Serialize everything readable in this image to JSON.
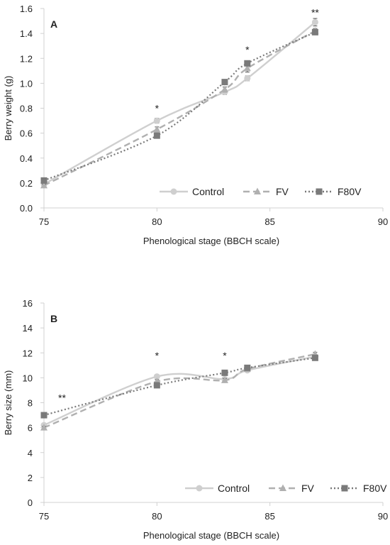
{
  "chart_data": [
    {
      "panel": "A",
      "type": "line",
      "xlabel": "Phenological stage (BBCH scale)",
      "ylabel": "Berry weight (g)",
      "xlim": [
        75,
        90
      ],
      "ylim": [
        0,
        1.6
      ],
      "xticks": [
        "75",
        "80",
        "85",
        "90"
      ],
      "yticks": [
        "0.0",
        "0.2",
        "0.4",
        "0.6",
        "0.8",
        "1.0",
        "1.2",
        "1.4",
        "1.6"
      ],
      "legend_position": "bottom-right",
      "grid": false,
      "series": [
        {
          "name": "Control",
          "marker": "circle",
          "color": "#cfcfcf",
          "dash": "solid",
          "x": [
            75,
            80,
            83,
            84,
            87
          ],
          "y": [
            0.19,
            0.7,
            0.93,
            1.04,
            1.49
          ],
          "err": [
            0.01,
            0.02,
            0.02,
            0.02,
            0.03
          ]
        },
        {
          "name": "FV",
          "marker": "triangle",
          "color": "#b0b0b0",
          "dash": "dashed",
          "x": [
            75,
            80,
            83,
            84,
            87
          ],
          "y": [
            0.18,
            0.63,
            0.95,
            1.12,
            1.42
          ],
          "err": [
            0.01,
            0.02,
            0.02,
            0.03,
            0.02
          ]
        },
        {
          "name": "F80V",
          "marker": "square",
          "color": "#7a7a7a",
          "dash": "dotted",
          "x": [
            75,
            80,
            83,
            84,
            87
          ],
          "y": [
            0.22,
            0.58,
            1.01,
            1.16,
            1.41
          ],
          "err": [
            0.01,
            0.02,
            0.02,
            0.02,
            0.02
          ]
        }
      ],
      "annotations": [
        {
          "x": 80,
          "y": 0.8,
          "text": "*"
        },
        {
          "x": 84,
          "y": 1.27,
          "text": "*"
        },
        {
          "x": 87,
          "y": 1.57,
          "text": "**"
        }
      ]
    },
    {
      "panel": "B",
      "type": "line",
      "xlabel": "Phenological stage (BBCH scale)",
      "ylabel": "Berry size (mm)",
      "xlim": [
        75,
        90
      ],
      "ylim": [
        0,
        16
      ],
      "xticks": [
        "75",
        "80",
        "85",
        "90"
      ],
      "yticks": [
        "0",
        "2",
        "4",
        "6",
        "8",
        "10",
        "12",
        "14",
        "16"
      ],
      "legend_position": "bottom-right",
      "grid": false,
      "series": [
        {
          "name": "Control",
          "marker": "circle",
          "color": "#cfcfcf",
          "dash": "solid",
          "x": [
            75,
            80,
            83,
            84,
            87
          ],
          "y": [
            6.2,
            10.1,
            9.9,
            10.6,
            11.7
          ],
          "err": [
            0.1,
            0.15,
            0.15,
            0.15,
            0.15
          ]
        },
        {
          "name": "FV",
          "marker": "triangle",
          "color": "#b0b0b0",
          "dash": "dashed",
          "x": [
            75,
            80,
            83,
            84,
            87
          ],
          "y": [
            6.0,
            9.7,
            9.8,
            10.7,
            11.9
          ],
          "err": [
            0.1,
            0.15,
            0.15,
            0.15,
            0.15
          ]
        },
        {
          "name": "F80V",
          "marker": "square",
          "color": "#7a7a7a",
          "dash": "dotted",
          "x": [
            75,
            80,
            83,
            84,
            87
          ],
          "y": [
            7.0,
            9.4,
            10.4,
            10.8,
            11.6
          ],
          "err": [
            0.1,
            0.15,
            0.15,
            0.15,
            0.15
          ]
        }
      ],
      "annotations": [
        {
          "x": 80,
          "y": 11.8,
          "text": "*"
        },
        {
          "x": 83,
          "y": 11.8,
          "text": "*"
        },
        {
          "x": 75.8,
          "y": 8.4,
          "text": "**"
        }
      ]
    }
  ]
}
